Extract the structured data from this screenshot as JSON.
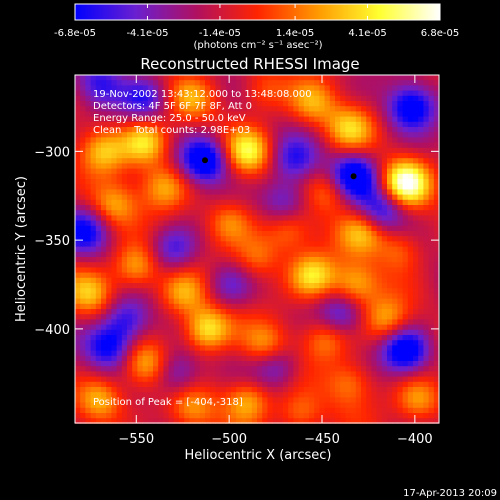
{
  "colorbar": {
    "tick_labels": [
      "-6.8e-05",
      "-4.1e-05",
      "-1.4e-05",
      "1.4e-05",
      "4.1e-05",
      "6.8e-05"
    ],
    "tick_values": [
      -6.8e-05,
      -4.1e-05,
      -1.4e-05,
      1.4e-05,
      4.1e-05,
      6.8e-05
    ],
    "range": [
      -6.8e-05,
      6.8e-05
    ],
    "units": "(photons cm⁻² s⁻¹ asec⁻²)",
    "colors": [
      "#0000ff",
      "#6a1fd0",
      "#b01060",
      "#ff2400",
      "#ff9a00",
      "#ffff30",
      "#ffffff"
    ]
  },
  "footer": {
    "timestamp": "17-Apr-2013 20:09"
  },
  "chart_data": {
    "type": "heatmap",
    "title": "Reconstructed RHESSI Image",
    "xlabel": "Heliocentric X (arcsec)",
    "ylabel": "Heliocentric Y (arcsec)",
    "xlim": [
      -583,
      -387
    ],
    "ylim": [
      -453,
      -257
    ],
    "x_ticks": [
      -550,
      -500,
      -450,
      -400
    ],
    "x_tick_labels": [
      "−550",
      "−500",
      "−450",
      "−400"
    ],
    "y_ticks": [
      -300,
      -350,
      -400
    ],
    "y_tick_labels": [
      "−300",
      "−350",
      "−400"
    ],
    "annotations": [
      "19-Nov-2002 13:43:12.000 to 13:48:08.000",
      "Detectors: 4F 5F 6F 7F 8F, Att 0",
      "Energy Range: 25.0 - 50.0 keV",
      "Clean    Total counts: 2.98E+03"
    ],
    "peak_label": "Position of Peak = [-404,-318]",
    "peak_position": [
      -404,
      -318
    ],
    "markers": [
      [
        -513,
        -305
      ],
      [
        -433,
        -314
      ]
    ],
    "blobs": [
      {
        "x": -405,
        "y": -318,
        "v": 1.0
      },
      {
        "x": -435,
        "y": -287,
        "v": 0.55
      },
      {
        "x": -428,
        "y": -345,
        "v": 0.55
      },
      {
        "x": -445,
        "y": -322,
        "v": 0.45
      },
      {
        "x": -455,
        "y": -273,
        "v": 0.45
      },
      {
        "x": -482,
        "y": -266,
        "v": 0.35
      },
      {
        "x": -520,
        "y": -270,
        "v": 0.4
      },
      {
        "x": -545,
        "y": -295,
        "v": 0.7
      },
      {
        "x": -568,
        "y": -300,
        "v": 0.55
      },
      {
        "x": -490,
        "y": -300,
        "v": 0.7
      },
      {
        "x": -535,
        "y": -320,
        "v": 0.5
      },
      {
        "x": -562,
        "y": -330,
        "v": 0.5
      },
      {
        "x": -500,
        "y": -340,
        "v": 0.45
      },
      {
        "x": -468,
        "y": -345,
        "v": 0.4
      },
      {
        "x": -485,
        "y": -360,
        "v": 0.4
      },
      {
        "x": -455,
        "y": -370,
        "v": 0.7
      },
      {
        "x": -432,
        "y": -375,
        "v": 0.55
      },
      {
        "x": -408,
        "y": -355,
        "v": 0.4
      },
      {
        "x": -415,
        "y": -395,
        "v": 0.5
      },
      {
        "x": -550,
        "y": -365,
        "v": 0.6
      },
      {
        "x": -575,
        "y": -380,
        "v": 0.5
      },
      {
        "x": -525,
        "y": -380,
        "v": 0.5
      },
      {
        "x": -512,
        "y": -400,
        "v": 0.8
      },
      {
        "x": -480,
        "y": -410,
        "v": 0.5
      },
      {
        "x": -448,
        "y": -405,
        "v": 0.45
      },
      {
        "x": -545,
        "y": -420,
        "v": 0.55
      },
      {
        "x": -570,
        "y": -440,
        "v": 0.6
      },
      {
        "x": -520,
        "y": -445,
        "v": 0.45
      },
      {
        "x": -490,
        "y": -440,
        "v": 0.55
      },
      {
        "x": -462,
        "y": -448,
        "v": 0.45
      },
      {
        "x": -435,
        "y": -430,
        "v": 0.4
      },
      {
        "x": -398,
        "y": -440,
        "v": 0.55
      },
      {
        "x": -513,
        "y": -305,
        "v": -0.9
      },
      {
        "x": -433,
        "y": -314,
        "v": -0.9
      },
      {
        "x": -402,
        "y": -275,
        "v": -0.8
      },
      {
        "x": -570,
        "y": -262,
        "v": -0.5
      },
      {
        "x": -465,
        "y": -305,
        "v": -0.5
      },
      {
        "x": -418,
        "y": -333,
        "v": -0.6
      },
      {
        "x": -578,
        "y": -345,
        "v": -0.6
      },
      {
        "x": -530,
        "y": -355,
        "v": -0.5
      },
      {
        "x": -555,
        "y": -395,
        "v": -0.6
      },
      {
        "x": -405,
        "y": -412,
        "v": -0.9
      },
      {
        "x": -440,
        "y": -392,
        "v": -0.5
      },
      {
        "x": -500,
        "y": -375,
        "v": -0.4
      },
      {
        "x": -565,
        "y": -410,
        "v": -0.7
      },
      {
        "x": -528,
        "y": -425,
        "v": -0.5
      },
      {
        "x": -475,
        "y": -420,
        "v": -0.5
      },
      {
        "x": -470,
        "y": -328,
        "v": -0.5
      },
      {
        "x": -545,
        "y": -270,
        "v": -0.5
      }
    ]
  }
}
